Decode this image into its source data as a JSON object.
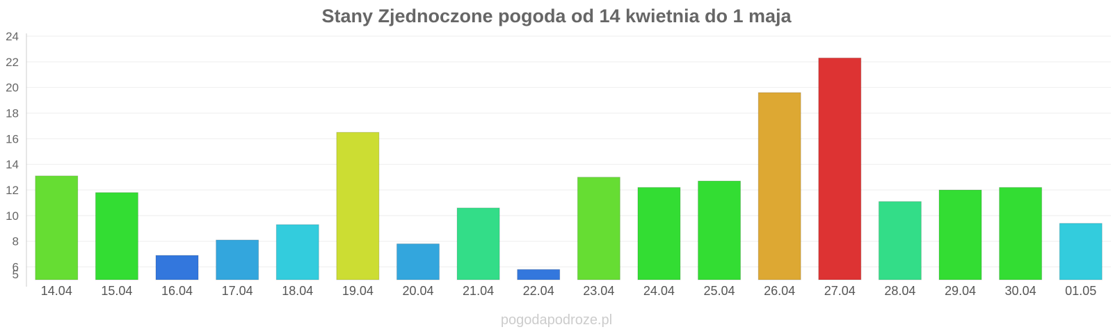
{
  "chart_data": {
    "type": "bar",
    "title": "Stany Zjednoczone pogoda od 14 kwietnia do 1 maja",
    "categories": [
      "14.04",
      "15.04",
      "16.04",
      "17.04",
      "18.04",
      "19.04",
      "20.04",
      "21.04",
      "22.04",
      "23.04",
      "24.04",
      "25.04",
      "26.04",
      "27.04",
      "28.04",
      "29.04",
      "30.04",
      "01.05"
    ],
    "values": [
      13.1,
      11.8,
      6.9,
      8.1,
      9.3,
      16.5,
      7.8,
      10.6,
      5.8,
      13.0,
      12.2,
      12.7,
      19.6,
      22.3,
      11.1,
      12.0,
      12.2,
      9.4
    ],
    "colors": [
      "#66dd33",
      "#33dd33",
      "#3377dd",
      "#33a6dd",
      "#33ccdd",
      "#ccdd33",
      "#33a6dd",
      "#33dd88",
      "#3377dd",
      "#66dd33",
      "#33dd33",
      "#33dd33",
      "#dda833",
      "#dd3333",
      "#33dd88",
      "#33dd33",
      "#33dd33",
      "#33ccdd"
    ],
    "y_ticks": [
      5,
      6,
      8,
      10,
      12,
      14,
      16,
      18,
      20,
      22,
      24
    ],
    "ylim": [
      5,
      24
    ],
    "grid": true,
    "legend": "none"
  },
  "watermark": "pogodapodroze.pl"
}
